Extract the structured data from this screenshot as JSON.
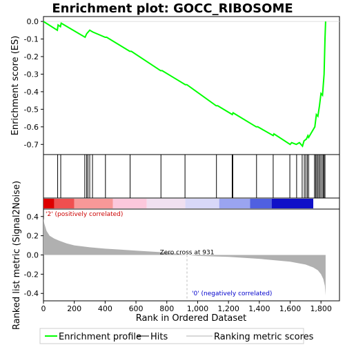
{
  "chart_data": {
    "type": "line",
    "title": "Enrichment plot: GOCC_RIBOSOME",
    "top_panel": {
      "ylabel": "Enrichment score (ES)",
      "ylim": [
        -0.75,
        0.02
      ],
      "yticks": [
        0.0,
        -0.1,
        -0.2,
        -0.3,
        -0.4,
        -0.5,
        -0.6,
        -0.7
      ],
      "ytick_labels": [
        "0.0",
        "-0.1",
        "-0.2",
        "-0.3",
        "-0.4",
        "-0.5",
        "-0.6",
        "-0.7"
      ],
      "series": [
        {
          "name": "Enrichment profile",
          "color": "#00ff00",
          "x": [
            0,
            90,
            95,
            110,
            115,
            270,
            280,
            290,
            300,
            320,
            400,
            410,
            560,
            570,
            760,
            770,
            920,
            930,
            1120,
            1130,
            1225,
            1230,
            1380,
            1390,
            1490,
            1495,
            1600,
            1610,
            1640,
            1660,
            1680,
            1690,
            1705,
            1715,
            1720,
            1760,
            1770,
            1780,
            1790,
            1800,
            1810,
            1820,
            1826,
            1830
          ],
          "y": [
            0.0,
            -0.05,
            -0.02,
            -0.03,
            -0.01,
            -0.09,
            -0.07,
            -0.06,
            -0.05,
            -0.06,
            -0.09,
            -0.09,
            -0.17,
            -0.17,
            -0.28,
            -0.28,
            -0.36,
            -0.36,
            -0.48,
            -0.48,
            -0.53,
            -0.52,
            -0.6,
            -0.6,
            -0.65,
            -0.64,
            -0.7,
            -0.69,
            -0.7,
            -0.69,
            -0.71,
            -0.68,
            -0.67,
            -0.65,
            -0.66,
            -0.6,
            -0.53,
            -0.54,
            -0.48,
            -0.41,
            -0.42,
            -0.3,
            -0.1,
            0.0
          ]
        }
      ]
    },
    "hits": [
      92,
      112,
      268,
      280,
      288,
      300,
      318,
      402,
      562,
      762,
      918,
      1122,
      1224,
      1228,
      1382,
      1490,
      1598,
      1642,
      1678,
      1692,
      1702,
      1712,
      1720,
      1758,
      1765,
      1772,
      1780,
      1788,
      1796,
      1806,
      1814,
      1820,
      1826
    ],
    "heat_stripe": {
      "colors": [
        "#dd0000",
        "#ef5050",
        "#f89898",
        "#fcc8dc",
        "#f0e0f0",
        "#d8d8f8",
        "#9aa4f0",
        "#5060e0",
        "#1010c8"
      ],
      "breaks": [
        0,
        70,
        200,
        450,
        670,
        920,
        1140,
        1340,
        1480,
        1750,
        1830
      ]
    },
    "bottom_panel": {
      "ylabel": "Ranked list metric (Signal2Noise)",
      "ylim": [
        -0.47,
        0.47
      ],
      "yticks": [
        0.4,
        0.2,
        0.0,
        -0.2,
        -0.4
      ],
      "ytick_labels": [
        "0.4",
        "0.2",
        "0.0",
        "-0.2",
        "-0.4"
      ],
      "series": [
        {
          "name": "Ranking metric scores",
          "color": "#b0b0b0",
          "x": [
            0,
            5,
            20,
            40,
            70,
            100,
            150,
            200,
            300,
            400,
            500,
            600,
            700,
            800,
            931,
            1000,
            1200,
            1400,
            1600,
            1700,
            1750,
            1780,
            1800,
            1815,
            1825,
            1830
          ],
          "y": [
            0.38,
            0.33,
            0.25,
            0.2,
            0.17,
            0.15,
            0.12,
            0.1,
            0.08,
            0.065,
            0.055,
            0.045,
            0.035,
            0.025,
            0.0,
            -0.01,
            -0.02,
            -0.04,
            -0.07,
            -0.1,
            -0.13,
            -0.16,
            -0.2,
            -0.25,
            -0.32,
            -0.42
          ]
        }
      ],
      "zero_cross_label": "Zero cross at 931",
      "zero_cross_x": 931,
      "pos_label": "'2' (positively correlated)",
      "neg_label": "'0' (negatively correlated)",
      "pos_color": "#cc0000",
      "neg_color": "#0000cc"
    },
    "xlabel": "Rank in Ordered Dataset",
    "xlim": [
      0,
      1920
    ],
    "xticks": [
      0,
      200,
      400,
      600,
      800,
      1000,
      1200,
      1400,
      1600,
      1800
    ],
    "xtick_labels": [
      "0",
      "200",
      "400",
      "600",
      "800",
      "1,000",
      "1,200",
      "1,400",
      "1,600",
      "1,800"
    ],
    "legend": [
      {
        "label": "Enrichment profile",
        "color": "#00ff00"
      },
      {
        "label": "Hits",
        "color": "#000000"
      },
      {
        "label": "Ranking metric scores",
        "color": "#b0b0b0"
      }
    ],
    "legend_position": "bottom"
  }
}
